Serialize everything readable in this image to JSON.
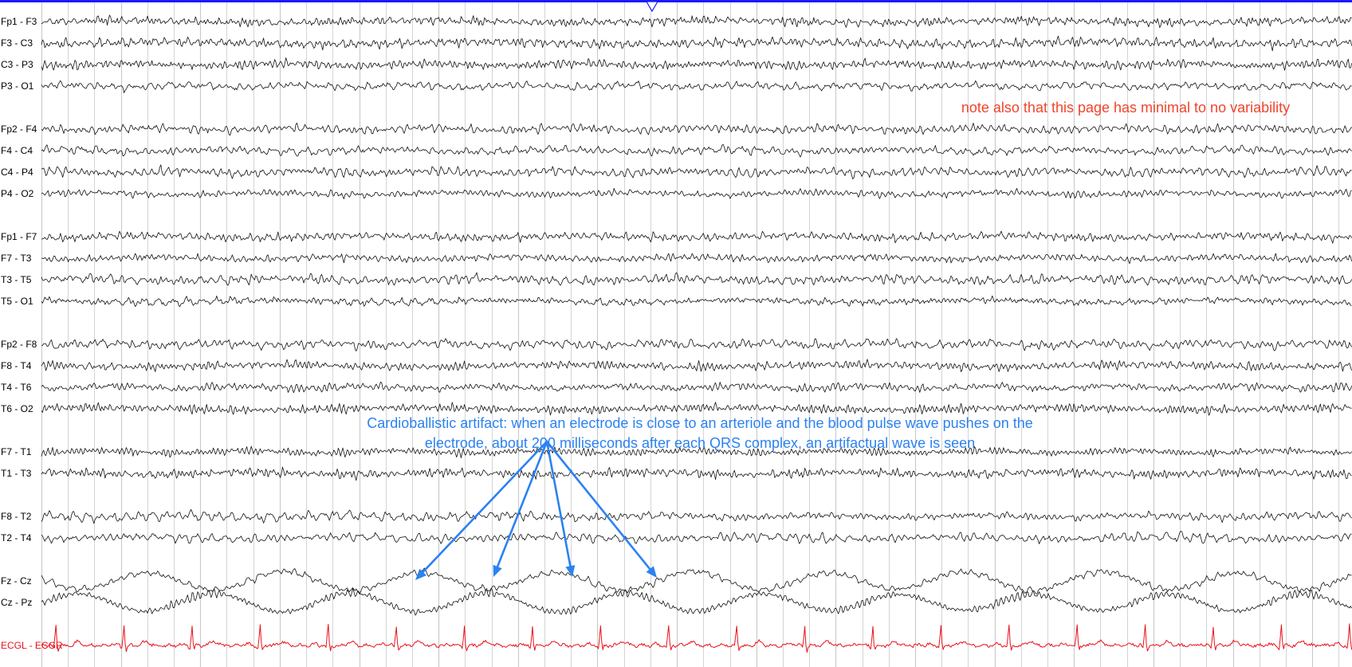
{
  "chart_data": {
    "type": "line",
    "title": "",
    "xlabel": "",
    "ylabel": "",
    "grid": true,
    "colors": {
      "trace": "#111111",
      "ecg_trace": "#e8121b",
      "ecg_label": "#e8121b",
      "grid_line": "#c9c9c9",
      "top_bar": "#1a1aff",
      "note_red": "#f0452b",
      "note_blue": "#2b82f2"
    },
    "x_range_seconds": [
      0,
      16.5
    ],
    "heart_rate_bpm": 70,
    "series": [
      {
        "name": "Fp1 - F3",
        "group": 1,
        "color": "trace"
      },
      {
        "name": "F3 - C3",
        "group": 1,
        "color": "trace"
      },
      {
        "name": "C3 - P3",
        "group": 1,
        "color": "trace"
      },
      {
        "name": "P3 - O1",
        "group": 1,
        "color": "trace"
      },
      {
        "name": "Fp2 - F4",
        "group": 2,
        "color": "trace"
      },
      {
        "name": "F4 - C4",
        "group": 2,
        "color": "trace"
      },
      {
        "name": "C4 - P4",
        "group": 2,
        "color": "trace"
      },
      {
        "name": "P4 - O2",
        "group": 2,
        "color": "trace"
      },
      {
        "name": "Fp1 - F7",
        "group": 3,
        "color": "trace"
      },
      {
        "name": "F7 - T3",
        "group": 3,
        "color": "trace"
      },
      {
        "name": "T3 - T5",
        "group": 3,
        "color": "trace"
      },
      {
        "name": "T5 - O1",
        "group": 3,
        "color": "trace"
      },
      {
        "name": "Fp2 - F8",
        "group": 4,
        "color": "trace"
      },
      {
        "name": "F8 - T4",
        "group": 4,
        "color": "trace"
      },
      {
        "name": "T4 - T6",
        "group": 4,
        "color": "trace"
      },
      {
        "name": "T6 - O2",
        "group": 4,
        "color": "trace"
      },
      {
        "name": "F7 - T1",
        "group": 5,
        "color": "trace"
      },
      {
        "name": "T1 - T3",
        "group": 5,
        "color": "trace"
      },
      {
        "name": "F8 - T2",
        "group": 6,
        "color": "trace"
      },
      {
        "name": "T2 - T4",
        "group": 6,
        "color": "trace"
      },
      {
        "name": "Fz - Cz",
        "group": 7,
        "color": "trace"
      },
      {
        "name": "Cz - Pz",
        "group": 7,
        "color": "trace"
      },
      {
        "name": "ECGL - ECGR",
        "group": 8,
        "color": "ecg_trace"
      }
    ],
    "annotations": [
      {
        "id": "variability_note",
        "text": "note also that this page has minimal to no variability",
        "color": "note_red"
      },
      {
        "id": "cardioballistic_note",
        "lines": [
          "Cardioballistic artifact: when an electrode is close to an arteriole and the blood pulse wave pushes on the",
          "electrode, about 200 milliseconds after each QRS complex, an artifactual wave is seen"
        ],
        "color": "note_blue",
        "arrow_count": 4
      }
    ]
  }
}
